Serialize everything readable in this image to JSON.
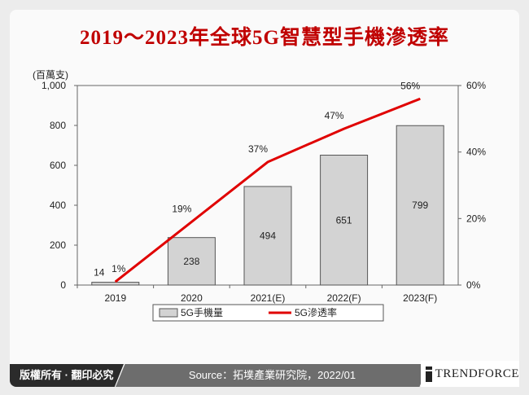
{
  "title": "2019～2023年全球5G智慧型手機滲透率",
  "footer": {
    "copyright": "版權所有 · 翻印必究",
    "source": "Source：拓墣產業研究院，2022/01",
    "logo_text": "TRENDFORCE"
  },
  "colors": {
    "title": "#c00000",
    "bar": "#d3d3d3",
    "line": "#e00000"
  },
  "chart_data": {
    "type": "bar+line",
    "categories": [
      "2019",
      "2020",
      "2021(E)",
      "2022(F)",
      "2023(F)"
    ],
    "y_left_label": "(百萬支)",
    "y_left_range": [
      0,
      1000
    ],
    "y_left_ticks": [
      "0",
      "200",
      "400",
      "600",
      "800",
      "1,000"
    ],
    "y_right_range": [
      0,
      60
    ],
    "y_right_ticks": [
      "0%",
      "20%",
      "40%",
      "60%"
    ],
    "grid": false,
    "legend_position": "bottom",
    "series": [
      {
        "name": "5G手機量",
        "type": "bar",
        "axis": "left",
        "values": [
          14,
          238,
          494,
          651,
          799
        ],
        "labels": [
          "14",
          "238",
          "494",
          "651",
          "799"
        ]
      },
      {
        "name": "5G滲透率",
        "type": "line",
        "axis": "right",
        "values": [
          1,
          19,
          37,
          47,
          56
        ],
        "labels": [
          "1%",
          "19%",
          "37%",
          "47%",
          "56%"
        ]
      }
    ]
  }
}
